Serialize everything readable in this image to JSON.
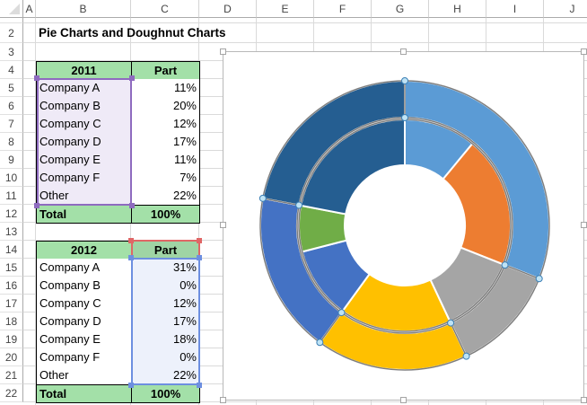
{
  "sheet": {
    "columns": [
      "A",
      "B",
      "C",
      "D",
      "E",
      "F",
      "G",
      "H",
      "I",
      "J"
    ],
    "rows": [
      "2",
      "3",
      "4",
      "5",
      "6",
      "7",
      "8",
      "9",
      "10",
      "11",
      "12",
      "13",
      "14",
      "15",
      "16",
      "17",
      "18",
      "19",
      "20",
      "21",
      "22"
    ],
    "title": "Pie Charts and Doughnut Charts"
  },
  "table_2011": {
    "header": [
      "2011",
      "Part"
    ],
    "rows": [
      {
        "name": "Company A",
        "part": "11%"
      },
      {
        "name": "Company B",
        "part": "20%"
      },
      {
        "name": "Company C",
        "part": "12%"
      },
      {
        "name": "Company D",
        "part": "17%"
      },
      {
        "name": "Company E",
        "part": "11%"
      },
      {
        "name": "Company F",
        "part": "7%"
      },
      {
        "name": "Other",
        "part": "22%"
      }
    ],
    "total": [
      "Total",
      "100%"
    ]
  },
  "table_2012": {
    "header": [
      "2012",
      "Part"
    ],
    "rows": [
      {
        "name": "Company A",
        "part": "31%"
      },
      {
        "name": "Company B",
        "part": "0%"
      },
      {
        "name": "Company C",
        "part": "12%"
      },
      {
        "name": "Company D",
        "part": "17%"
      },
      {
        "name": "Company E",
        "part": "18%"
      },
      {
        "name": "Company F",
        "part": "0%"
      },
      {
        "name": "Other",
        "part": "22%"
      }
    ],
    "total": [
      "Total",
      "100%"
    ]
  },
  "colors": {
    "header_fill": "#a3e0a8",
    "selection_purple": "#8e6bbf",
    "selection_blue": "#6d8fe0",
    "selection_red": "#e06666"
  },
  "chart_data": {
    "type": "doughnut",
    "title": "",
    "categories": [
      "Company A",
      "Company B",
      "Company C",
      "Company D",
      "Company E",
      "Company F",
      "Other"
    ],
    "series": [
      {
        "name": "2011",
        "ring": "inner",
        "values": [
          11,
          20,
          12,
          17,
          11,
          7,
          22
        ]
      },
      {
        "name": "2012",
        "ring": "outer",
        "values": [
          31,
          0,
          12,
          17,
          18,
          0,
          22
        ]
      }
    ],
    "slice_colors": [
      "#5b9bd5",
      "#ed7d31",
      "#a5a5a5",
      "#ffc000",
      "#4472c4",
      "#70ad47",
      "#255e91"
    ],
    "legend": "none",
    "start_angle": 0
  }
}
